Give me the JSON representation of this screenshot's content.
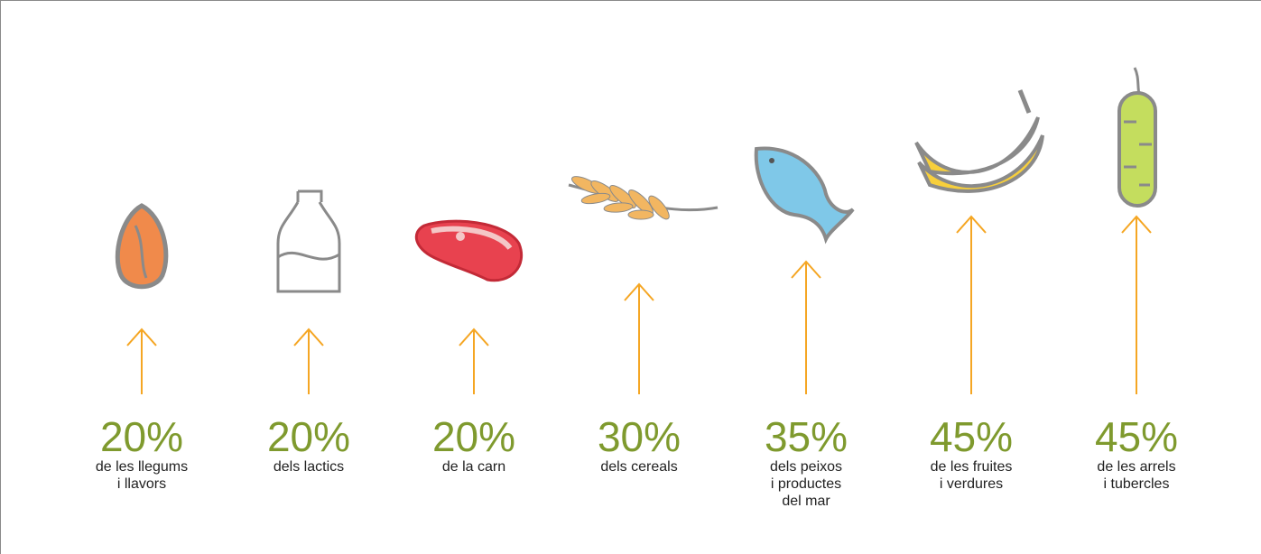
{
  "chart_data": {
    "type": "arrow",
    "categories": [
      [
        "de les llegums",
        "i llavors"
      ],
      [
        "dels lactics"
      ],
      [
        "de la carn"
      ],
      [
        "dels cereals"
      ],
      [
        "dels peixos",
        "i productes",
        "del mar"
      ],
      [
        "de les fruites",
        "i verdures"
      ],
      [
        "de les arrels",
        "i tubercles"
      ]
    ],
    "values": [
      20,
      20,
      20,
      30,
      35,
      45,
      45
    ],
    "value_labels": [
      "20%",
      "20%",
      "20%",
      "30%",
      "35%",
      "45%",
      "45%"
    ],
    "color": "#f5a623",
    "label_color": "#7f9a2e"
  }
}
